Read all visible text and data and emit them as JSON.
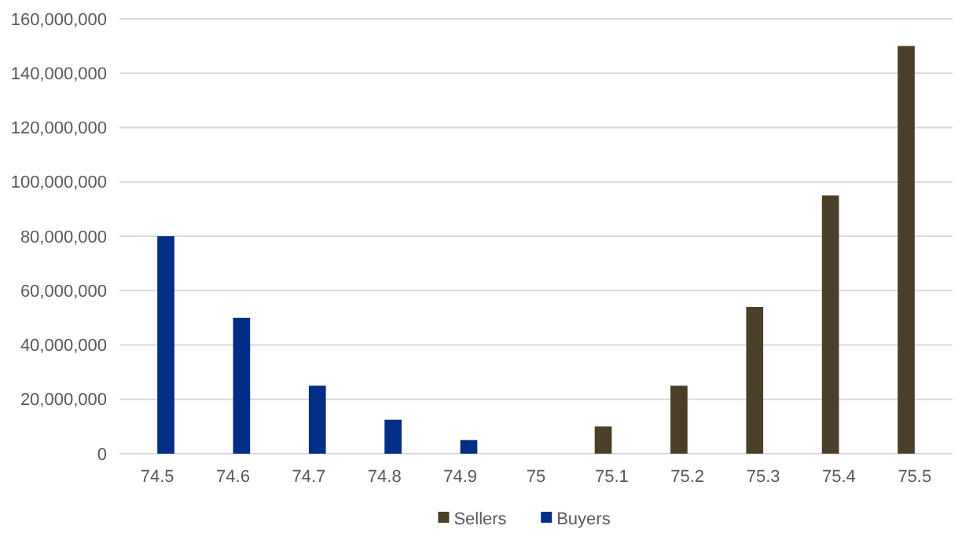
{
  "chart_data": {
    "type": "bar",
    "categories": [
      "74.5",
      "74.6",
      "74.7",
      "74.8",
      "74.9",
      "75",
      "75.1",
      "75.2",
      "75.3",
      "75.4",
      "75.5"
    ],
    "series": [
      {
        "name": "Sellers",
        "color": "#4b3f2a",
        "values": [
          null,
          null,
          null,
          null,
          null,
          null,
          10000000,
          25000000,
          54000000,
          95000000,
          150000000
        ]
      },
      {
        "name": "Buyers",
        "color": "#002d85",
        "values": [
          80000000,
          50000000,
          25000000,
          12500000,
          5000000,
          null,
          null,
          null,
          null,
          null,
          null
        ]
      }
    ],
    "ylim": [
      0,
      160000000
    ],
    "yticks": [
      {
        "value": 0,
        "label": "0"
      },
      {
        "value": 20000000,
        "label": "20,000,000"
      },
      {
        "value": 40000000,
        "label": "40,000,000"
      },
      {
        "value": 60000000,
        "label": "60,000,000"
      },
      {
        "value": 80000000,
        "label": "80,000,000"
      },
      {
        "value": 100000000,
        "label": "100,000,000"
      },
      {
        "value": 120000000,
        "label": "120,000,000"
      },
      {
        "value": 140000000,
        "label": "140,000,000"
      },
      {
        "value": 160000000,
        "label": "160,000,000"
      }
    ],
    "grid": "y",
    "legend": "bottom"
  }
}
